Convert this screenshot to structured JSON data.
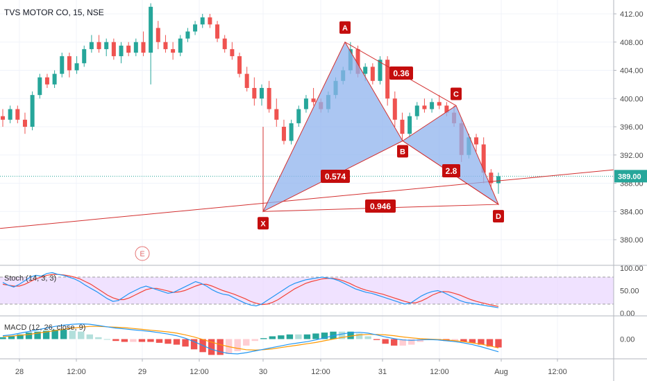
{
  "header": {
    "title": "TVS MOTOR CO, 15, NSE"
  },
  "colors": {
    "up": "#26a69a",
    "down": "#ef5350",
    "pattern_fill": "#8fb3ee",
    "pattern_line": "#d32f2f",
    "label_bg": "#c40d0d",
    "stoch_k": "#2196f3",
    "stoch_d": "#f44336",
    "stoch_band": "#e9d5ff",
    "macd_line": "#2196f3",
    "signal_line": "#ff9800",
    "grid": "#f0f3fa",
    "price_line": "#26a69a"
  },
  "chart_data": {
    "type": "candlestick",
    "symbol": "TVS MOTOR CO",
    "interval": "15",
    "exchange": "NSE",
    "price_axis": {
      "ticks": [
        "412.00",
        "408.00",
        "404.00",
        "400.00",
        "396.00",
        "392.00",
        "388.00",
        "384.00",
        "380.00"
      ],
      "values": [
        412,
        408,
        404,
        400,
        396,
        392,
        388,
        384,
        380
      ],
      "range": [
        377,
        414
      ]
    },
    "time_axis": {
      "labels": [
        "28",
        "12:00",
        "29",
        "12:00",
        "30",
        "12:00",
        "31",
        "12:00",
        "Aug",
        "12:00"
      ]
    },
    "last_price": {
      "value": 389.0,
      "label": "389.00"
    },
    "candles": [
      [
        397.5,
        398.5,
        396.0,
        397.0
      ],
      [
        397.0,
        399.0,
        396.5,
        398.5
      ],
      [
        398.5,
        399.0,
        396.5,
        397.0
      ],
      [
        397.0,
        398.0,
        395.0,
        396.0
      ],
      [
        396.0,
        401.0,
        395.5,
        400.5
      ],
      [
        400.5,
        403.5,
        400.0,
        403.0
      ],
      [
        403.0,
        403.5,
        401.5,
        402.0
      ],
      [
        402.0,
        404.0,
        401.5,
        403.5
      ],
      [
        403.5,
        406.5,
        403.0,
        406.0
      ],
      [
        406.0,
        406.5,
        403.0,
        404.0
      ],
      [
        404.0,
        406.0,
        403.5,
        405.0
      ],
      [
        405.0,
        407.5,
        404.5,
        407.0
      ],
      [
        407.0,
        409.0,
        406.5,
        408.0
      ],
      [
        408.0,
        409.0,
        406.5,
        407.0
      ],
      [
        407.0,
        408.5,
        406.0,
        408.0
      ],
      [
        408.0,
        408.5,
        405.5,
        406.0
      ],
      [
        406.0,
        408.0,
        405.0,
        407.5
      ],
      [
        407.5,
        408.0,
        406.0,
        406.5
      ],
      [
        406.5,
        408.5,
        406.0,
        408.0
      ],
      [
        408.0,
        409.5,
        406.0,
        406.5
      ],
      [
        406.5,
        413.5,
        402.0,
        413.0
      ],
      [
        410.0,
        411.0,
        407.0,
        408.0
      ],
      [
        408.0,
        409.0,
        406.5,
        407.0
      ],
      [
        407.0,
        408.0,
        405.5,
        406.5
      ],
      [
        406.5,
        409.0,
        406.0,
        408.5
      ],
      [
        408.5,
        410.0,
        408.0,
        409.5
      ],
      [
        409.5,
        411.0,
        409.0,
        410.5
      ],
      [
        410.5,
        412.0,
        410.0,
        411.5
      ],
      [
        411.5,
        412.0,
        410.0,
        410.5
      ],
      [
        410.5,
        411.0,
        408.0,
        408.5
      ],
      [
        408.5,
        409.0,
        406.5,
        407.0
      ],
      [
        407.0,
        408.0,
        405.5,
        406.0
      ],
      [
        406.0,
        406.5,
        403.0,
        403.5
      ],
      [
        403.5,
        404.5,
        401.0,
        401.5
      ],
      [
        401.5,
        403.0,
        399.0,
        400.0
      ],
      [
        400.0,
        402.0,
        399.0,
        401.5
      ],
      [
        401.5,
        402.5,
        398.0,
        398.5
      ],
      [
        398.5,
        400.0,
        396.0,
        397.0
      ],
      [
        396.0,
        397.0,
        393.5,
        394.0
      ],
      [
        394.0,
        397.0,
        393.5,
        396.5
      ],
      [
        396.5,
        399.0,
        396.0,
        398.5
      ],
      [
        398.5,
        400.5,
        398.0,
        400.0
      ],
      [
        400.0,
        401.5,
        399.0,
        399.5
      ],
      [
        399.5,
        400.0,
        398.0,
        398.5
      ],
      [
        398.5,
        401.0,
        398.0,
        400.5
      ],
      [
        400.5,
        403.0,
        400.0,
        402.5
      ],
      [
        402.5,
        404.5,
        402.0,
        404.0
      ],
      [
        404.0,
        408.0,
        403.5,
        407.0
      ],
      [
        407.0,
        407.5,
        403.0,
        403.5
      ],
      [
        403.5,
        405.0,
        402.5,
        404.5
      ],
      [
        404.5,
        405.0,
        402.0,
        402.5
      ],
      [
        402.5,
        406.0,
        402.0,
        405.5
      ],
      [
        405.5,
        406.0,
        399.0,
        400.0
      ],
      [
        400.0,
        401.0,
        396.0,
        397.0
      ],
      [
        397.0,
        398.0,
        394.0,
        395.0
      ],
      [
        395.0,
        398.0,
        394.5,
        397.5
      ],
      [
        397.5,
        399.5,
        397.0,
        399.0
      ],
      [
        399.0,
        400.0,
        398.0,
        398.5
      ],
      [
        398.5,
        400.0,
        398.0,
        399.5
      ],
      [
        399.5,
        400.5,
        398.5,
        399.0
      ],
      [
        399.0,
        399.5,
        397.5,
        398.0
      ],
      [
        398.0,
        399.0,
        396.0,
        396.5
      ],
      [
        396.5,
        397.0,
        391.0,
        392.0
      ],
      [
        392.0,
        395.0,
        391.5,
        394.5
      ],
      [
        394.5,
        395.0,
        392.5,
        393.5
      ],
      [
        393.5,
        394.5,
        388.0,
        389.5
      ],
      [
        389.5,
        390.0,
        387.0,
        388.0
      ],
      [
        388.0,
        389.5,
        386.5,
        389.0
      ]
    ],
    "harmonic_pattern": {
      "points": [
        {
          "label": "X",
          "value": 384.0
        },
        {
          "label": "A",
          "value": 408.0
        },
        {
          "label": "B",
          "value": 394.0
        },
        {
          "label": "C",
          "value": 399.0
        },
        {
          "label": "D",
          "value": 385.0
        }
      ],
      "ratios": [
        "0.36",
        "0.574",
        "2.8",
        "0.946"
      ]
    },
    "event_marker": "E",
    "stochastic": {
      "title": "Stoch (14, 3, 3)",
      "ticks": [
        "100.00",
        "50.00",
        "0.00"
      ],
      "tick_values": [
        100,
        50,
        0
      ],
      "bands": [
        80,
        20
      ],
      "k": [
        68,
        62,
        58,
        64,
        72,
        80,
        84,
        82,
        88,
        90,
        86,
        84,
        80,
        76,
        70,
        62,
        55,
        48,
        40,
        32,
        26,
        28,
        36,
        44,
        50,
        56,
        60,
        56,
        52,
        48,
        44,
        46,
        52,
        58,
        64,
        70,
        66,
        60,
        52,
        46,
        42,
        40,
        34,
        28,
        22,
        18,
        16,
        20,
        28,
        36,
        44,
        52,
        60,
        66,
        70,
        74,
        76,
        78,
        80,
        78,
        76,
        72,
        66,
        60,
        54,
        50,
        46,
        44,
        40,
        36,
        32,
        28,
        24,
        20,
        22,
        30,
        38,
        44,
        48,
        50,
        46,
        40,
        34,
        28,
        24,
        22,
        20,
        18,
        16,
        14,
        12
      ],
      "d": [
        64,
        62,
        60,
        60,
        64,
        70,
        76,
        80,
        84,
        86,
        86,
        85,
        83,
        80,
        76,
        70,
        64,
        56,
        48,
        40,
        34,
        30,
        30,
        34,
        40,
        46,
        52,
        55,
        55,
        52,
        49,
        46,
        47,
        50,
        55,
        60,
        64,
        64,
        60,
        55,
        50,
        46,
        42,
        37,
        32,
        26,
        22,
        19,
        20,
        24,
        30,
        38,
        46,
        54,
        60,
        66,
        70,
        73,
        76,
        77,
        77,
        75,
        71,
        66,
        60,
        55,
        51,
        48,
        45,
        42,
        38,
        34,
        30,
        26,
        23,
        23,
        27,
        33,
        40,
        45,
        48,
        47,
        44,
        40,
        35,
        30,
        26,
        23,
        20,
        17,
        15
      ]
    },
    "macd": {
      "title": "MACD (12, 26, close, 9)",
      "ticks": [
        "0.00"
      ],
      "tick_values": [
        0
      ],
      "range": [
        -4.5,
        4.5
      ],
      "macd": [
        0.8,
        1.0,
        1.4,
        1.8,
        2.2,
        2.6,
        3.0,
        3.3,
        3.5,
        3.6,
        3.5,
        3.2,
        2.9,
        2.6,
        2.4,
        2.2,
        2.0,
        1.8,
        1.5,
        1.2,
        0.8,
        0.2,
        -0.6,
        -1.5,
        -2.4,
        -3.0,
        -3.4,
        -3.5,
        -3.2,
        -2.8,
        -2.4,
        -2.0,
        -1.6,
        -1.2,
        -0.9,
        -0.6,
        -0.2,
        0.3,
        0.8,
        1.2,
        1.5,
        1.6,
        1.4,
        1.0,
        0.5,
        0.1,
        -0.2,
        -0.3,
        -0.2,
        -0.1,
        -0.2,
        -0.4,
        -0.6,
        -0.9,
        -1.3,
        -1.8,
        -2.4,
        -3.0
      ],
      "signal": [
        0.6,
        0.7,
        0.9,
        1.1,
        1.4,
        1.7,
        2.0,
        2.3,
        2.6,
        2.8,
        3.0,
        3.0,
        2.9,
        2.8,
        2.7,
        2.5,
        2.3,
        2.1,
        1.9,
        1.7,
        1.4,
        1.0,
        0.5,
        -0.1,
        -0.7,
        -1.3,
        -1.8,
        -2.2,
        -2.5,
        -2.6,
        -2.5,
        -2.3,
        -2.0,
        -1.7,
        -1.4,
        -1.1,
        -0.8,
        -0.4,
        0.0,
        0.4,
        0.7,
        1.0,
        1.1,
        1.1,
        1.0,
        0.8,
        0.5,
        0.3,
        0.1,
        0.0,
        -0.1,
        -0.2,
        -0.4,
        -0.6,
        -0.9,
        -1.2,
        -1.6,
        -2.1
      ]
    }
  }
}
